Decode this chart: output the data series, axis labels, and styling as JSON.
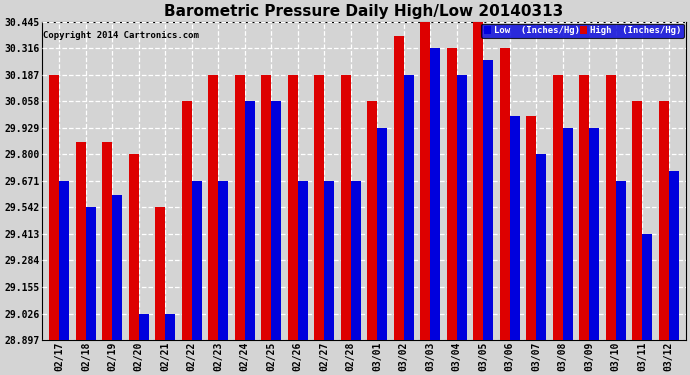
{
  "title": "Barometric Pressure Daily High/Low 20140313",
  "copyright": "Copyright 2014 Cartronics.com",
  "legend_low": "Low  (Inches/Hg)",
  "legend_high": "High  (Inches/Hg)",
  "low_color": "#0000dd",
  "high_color": "#dd0000",
  "background_color": "#d4d4d4",
  "ylim_min": 28.897,
  "ylim_max": 30.445,
  "yticks": [
    28.897,
    29.026,
    29.155,
    29.284,
    29.413,
    29.542,
    29.671,
    29.8,
    29.929,
    30.058,
    30.187,
    30.316,
    30.445
  ],
  "dates": [
    "02/17",
    "02/18",
    "02/19",
    "02/20",
    "02/21",
    "02/22",
    "02/23",
    "02/24",
    "02/25",
    "02/26",
    "02/27",
    "02/28",
    "03/01",
    "03/02",
    "03/03",
    "03/04",
    "03/05",
    "03/06",
    "03/07",
    "03/08",
    "03/09",
    "03/10",
    "03/11",
    "03/12"
  ],
  "high_values": [
    30.187,
    29.858,
    29.858,
    29.8,
    29.542,
    30.058,
    30.187,
    30.187,
    30.187,
    30.187,
    30.187,
    30.187,
    30.058,
    30.374,
    30.445,
    30.316,
    30.445,
    30.316,
    29.987,
    30.187,
    30.187,
    30.187,
    30.058,
    30.058
  ],
  "low_values": [
    29.671,
    29.542,
    29.6,
    29.026,
    29.026,
    29.671,
    29.671,
    30.058,
    30.058,
    29.671,
    29.671,
    29.671,
    29.929,
    30.187,
    30.316,
    30.187,
    30.26,
    29.987,
    29.8,
    29.929,
    29.929,
    29.671,
    29.413,
    29.72
  ]
}
